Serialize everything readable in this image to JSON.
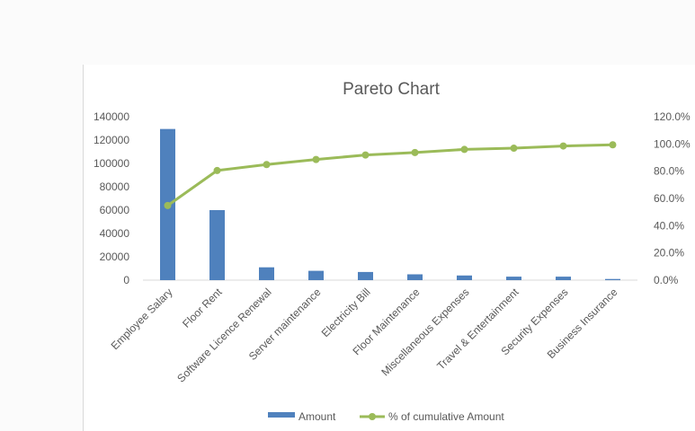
{
  "chart_data": {
    "type": "bar+line",
    "title": "Pareto Chart",
    "xlabel": "",
    "ylabel": "",
    "categories": [
      "Employee Salary",
      "Floor Rent",
      "Software Licence Renewal",
      "Server maintenance",
      "Electricity Bill",
      "Floor Maintenance",
      "Miscellaneous Expenses",
      "Travel & Entertainment",
      "Security Expenses",
      "Business Insurance"
    ],
    "series": [
      {
        "name": "Amount",
        "type": "bar",
        "axis": "left",
        "color": "#4f81bd",
        "values": [
          129500,
          60000,
          11000,
          8000,
          7000,
          5000,
          4000,
          3000,
          3000,
          1000
        ]
      },
      {
        "name": "% of cumulative Amount",
        "type": "line",
        "axis": "right",
        "color": "#9bbb59",
        "values": [
          54.8,
          80.5,
          84.9,
          88.6,
          91.9,
          93.7,
          96.0,
          96.9,
          98.5,
          99.4
        ]
      }
    ],
    "ylim": [
      0,
      140000
    ],
    "yticks": [
      "0",
      "20000",
      "40000",
      "60000",
      "80000",
      "100000",
      "120000",
      "140000"
    ],
    "y2lim": [
      0,
      120
    ],
    "y2ticks": [
      "0.0%",
      "20.0%",
      "40.0%",
      "60.0%",
      "80.0%",
      "100.0%",
      "120.0%"
    ],
    "grid": false,
    "legend_position": "bottom"
  }
}
